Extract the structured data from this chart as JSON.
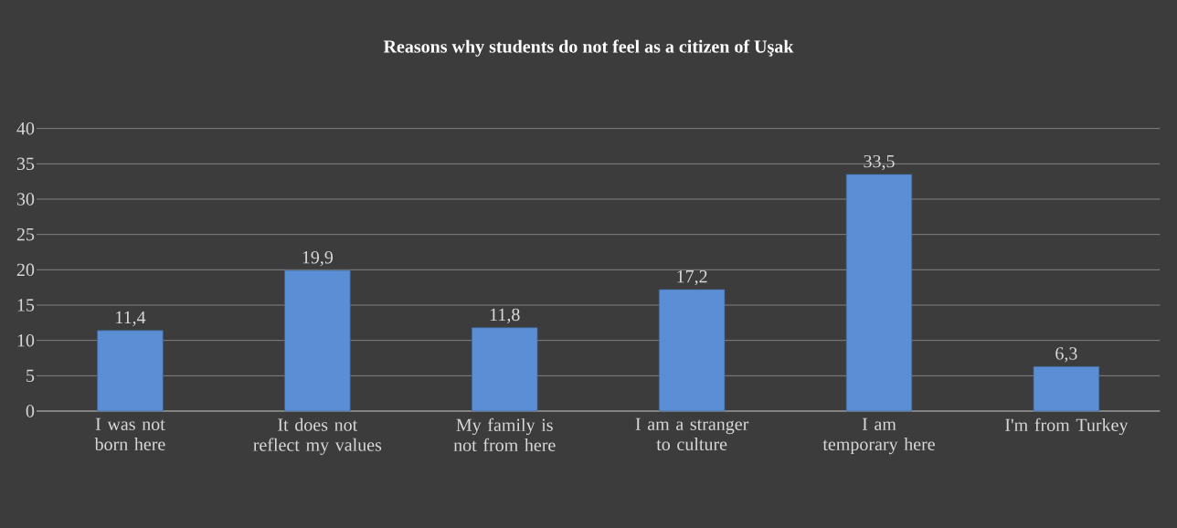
{
  "chart_data": {
    "type": "bar",
    "title": "Reasons why students do not feel as a citizen of Uşak",
    "categories": [
      "I was not born here",
      "It does not reflect my values",
      "My family is not from here",
      "I am a stranger to culture",
      "I am temporary here",
      "I'm from Turkey"
    ],
    "values": [
      11.4,
      19.9,
      11.8,
      17.2,
      33.5,
      6.3
    ],
    "value_labels": [
      "11,4",
      "19,9",
      "11,8",
      "17,2",
      "33,5",
      "6,3"
    ],
    "color": "#5a8fd6",
    "ylim": [
      0,
      40
    ],
    "yticks": [
      0,
      5,
      10,
      15,
      20,
      25,
      30,
      35,
      40
    ],
    "grid": "y"
  }
}
